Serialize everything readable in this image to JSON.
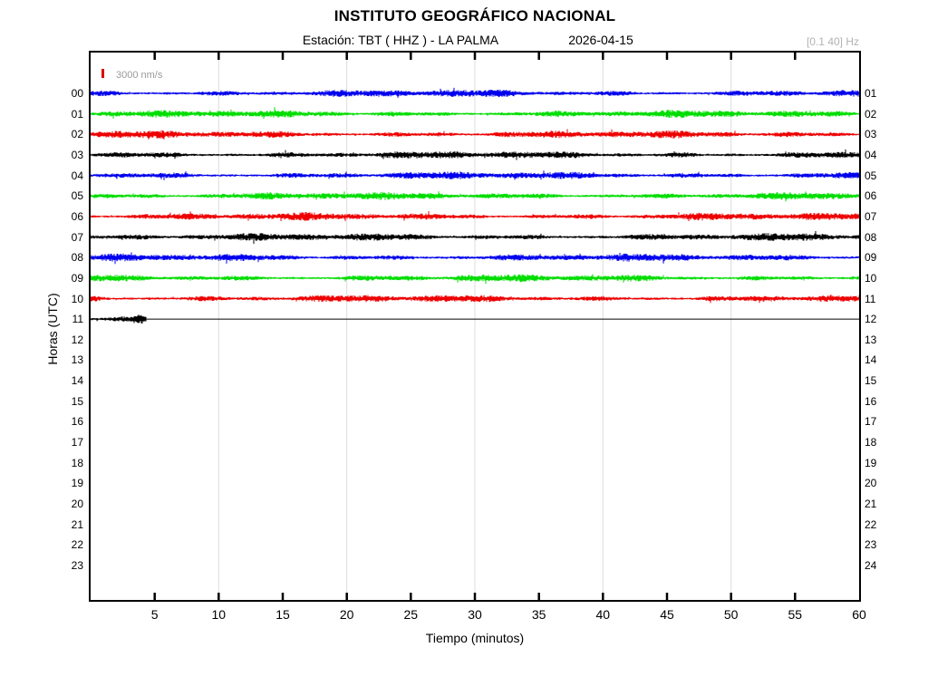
{
  "header": {
    "title": "INSTITUTO GEOGRÁFICO NACIONAL",
    "station_line": "Estación:  TBT ( HHZ ) - LA PALMA",
    "date": "2026-04-15",
    "filter_band": "[0.1 40] Hz"
  },
  "legend": {
    "label": "3000 nm/s",
    "marker_color": "#dd0000"
  },
  "axes": {
    "xlabel": "Tiempo (minutos)",
    "ylabel": "Horas (UTC)",
    "x_range": [
      0,
      60
    ],
    "x_tick_labels": [
      5,
      10,
      15,
      20,
      25,
      30,
      35,
      40,
      45,
      50,
      55,
      60
    ],
    "x_minor_ticks": [
      5,
      10,
      15,
      20,
      25,
      30,
      35,
      40,
      45,
      50,
      55
    ],
    "x_grid": [
      10,
      20,
      30,
      40,
      50
    ],
    "grid_on": true
  },
  "chart_data": {
    "type": "line",
    "subtype": "helicorder-seismogram",
    "title": "INSTITUTO GEOGRÁFICO NACIONAL",
    "station": "TBT ( HHZ ) - LA PALMA",
    "date": "2026-04-15",
    "filter_band_hz": [
      0.1,
      40
    ],
    "amplitude_scale_nm_s": 3000,
    "xlabel": "Tiempo (minutos)",
    "ylabel": "Horas (UTC)",
    "x_range_minutes": [
      0,
      60
    ],
    "grid_color": "#dcdcdc",
    "color_cycle": [
      "#0000ee",
      "#00dd00",
      "#ee0000",
      "#000000"
    ],
    "rows": [
      {
        "left_label": "00",
        "right_label": "01",
        "color": "#0000ee",
        "noise_minutes": [
          0,
          60
        ]
      },
      {
        "left_label": "01",
        "right_label": "02",
        "color": "#00dd00",
        "noise_minutes": [
          0,
          60
        ]
      },
      {
        "left_label": "02",
        "right_label": "03",
        "color": "#ee0000",
        "noise_minutes": [
          0,
          60
        ]
      },
      {
        "left_label": "03",
        "right_label": "04",
        "color": "#000000",
        "noise_minutes": [
          0,
          60
        ]
      },
      {
        "left_label": "04",
        "right_label": "05",
        "color": "#0000ee",
        "noise_minutes": [
          0,
          60
        ]
      },
      {
        "left_label": "05",
        "right_label": "06",
        "color": "#00dd00",
        "noise_minutes": [
          0,
          60
        ]
      },
      {
        "left_label": "06",
        "right_label": "07",
        "color": "#ee0000",
        "noise_minutes": [
          0,
          60
        ]
      },
      {
        "left_label": "07",
        "right_label": "08",
        "color": "#000000",
        "noise_minutes": [
          0,
          60
        ]
      },
      {
        "left_label": "08",
        "right_label": "09",
        "color": "#0000ee",
        "noise_minutes": [
          0,
          60
        ]
      },
      {
        "left_label": "09",
        "right_label": "10",
        "color": "#00dd00",
        "noise_minutes": [
          0,
          60
        ]
      },
      {
        "left_label": "10",
        "right_label": "11",
        "color": "#ee0000",
        "noise_minutes": [
          0,
          60
        ]
      },
      {
        "left_label": "11",
        "right_label": "12",
        "color": "#000000",
        "noise_minutes": [
          0,
          4.3
        ],
        "flat_minutes": [
          4.3,
          60
        ],
        "end_burst": true
      },
      {
        "left_label": "12",
        "right_label": "13",
        "color": null,
        "noise_minutes": null
      },
      {
        "left_label": "13",
        "right_label": "14",
        "color": null,
        "noise_minutes": null
      },
      {
        "left_label": "14",
        "right_label": "15",
        "color": null,
        "noise_minutes": null
      },
      {
        "left_label": "15",
        "right_label": "16",
        "color": null,
        "noise_minutes": null
      },
      {
        "left_label": "16",
        "right_label": "17",
        "color": null,
        "noise_minutes": null
      },
      {
        "left_label": "17",
        "right_label": "18",
        "color": null,
        "noise_minutes": null
      },
      {
        "left_label": "18",
        "right_label": "19",
        "color": null,
        "noise_minutes": null
      },
      {
        "left_label": "19",
        "right_label": "20",
        "color": null,
        "noise_minutes": null
      },
      {
        "left_label": "20",
        "right_label": "21",
        "color": null,
        "noise_minutes": null
      },
      {
        "left_label": "21",
        "right_label": "22",
        "color": null,
        "noise_minutes": null
      },
      {
        "left_label": "22",
        "right_label": "23",
        "color": null,
        "noise_minutes": null
      },
      {
        "left_label": "23",
        "right_label": "24",
        "color": null,
        "noise_minutes": null
      }
    ]
  }
}
